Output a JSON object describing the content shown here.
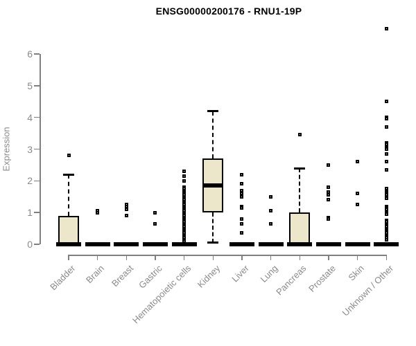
{
  "chart_data": {
    "type": "boxplot",
    "title": "ENSG00000200176 - RNU1-19P",
    "ylabel": "Expression",
    "xlabel": "",
    "ylim": [
      0,
      6
    ],
    "yticks": [
      0,
      1,
      2,
      3,
      4,
      5,
      6
    ],
    "grid": false,
    "legend": false,
    "colors": {
      "box_fill": "#ece7cb",
      "box_border": "#000000",
      "axis": "#7f7f7f",
      "tick_label": "#8a8a8a",
      "title": "#000000"
    },
    "categories": [
      "Bladder",
      "Brain",
      "Breast",
      "Gastric",
      "Hematopoietic cells",
      "Kidney",
      "Liver",
      "Lung",
      "Pancreas",
      "Prostate",
      "Skin",
      "Unknown / Other"
    ],
    "series": [
      {
        "label": "Bladder",
        "whisker_low": 0,
        "q1": 0,
        "median": 0,
        "q3": 0.9,
        "whisker_high": 2.2,
        "outliers": [
          2.8
        ]
      },
      {
        "label": "Brain",
        "whisker_low": 0,
        "q1": 0,
        "median": 0,
        "q3": 0,
        "whisker_high": 0,
        "outliers": [
          1.05,
          1.0
        ]
      },
      {
        "label": "Breast",
        "whisker_low": 0,
        "q1": 0,
        "median": 0,
        "q3": 0,
        "whisker_high": 0,
        "outliers": [
          1.25,
          1.2,
          1.1,
          0.9
        ]
      },
      {
        "label": "Gastric",
        "whisker_low": 0,
        "q1": 0,
        "median": 0,
        "q3": 0,
        "whisker_high": 0,
        "outliers": [
          1.0,
          0.65
        ]
      },
      {
        "label": "Hematopoietic cells",
        "whisker_low": 0,
        "q1": 0,
        "median": 0,
        "q3": 0,
        "whisker_high": 0,
        "outliers": [
          2.3,
          2.15,
          2.0,
          1.8,
          1.75,
          1.7,
          1.65,
          1.6,
          1.55,
          1.5,
          1.45,
          1.4,
          1.35,
          1.3,
          1.25,
          1.2,
          1.15,
          1.1,
          1.05,
          1.0,
          0.95,
          0.9,
          0.85,
          0.8,
          0.75,
          0.7,
          0.65,
          0.6,
          0.55,
          0.5,
          0.45,
          0.4,
          0.35,
          0.3,
          0.25,
          0.2,
          0.15,
          0.1
        ]
      },
      {
        "label": "Kidney",
        "whisker_low": 0.05,
        "q1": 1.0,
        "median": 1.85,
        "q3": 2.7,
        "whisker_high": 4.2,
        "outliers": []
      },
      {
        "label": "Liver",
        "whisker_low": 0,
        "q1": 0,
        "median": 0,
        "q3": 0,
        "whisker_high": 0,
        "outliers": [
          2.2,
          1.9,
          1.7,
          1.6,
          1.5,
          1.2,
          1.15,
          0.8,
          0.65,
          0.35
        ]
      },
      {
        "label": "Lung",
        "whisker_low": 0,
        "q1": 0,
        "median": 0,
        "q3": 0,
        "whisker_high": 0,
        "outliers": [
          1.5,
          1.05,
          0.65
        ]
      },
      {
        "label": "Pancreas",
        "whisker_low": 0,
        "q1": 0,
        "median": 0,
        "q3": 1.0,
        "whisker_high": 2.4,
        "outliers": [
          3.45
        ]
      },
      {
        "label": "Prostate",
        "whisker_low": 0,
        "q1": 0,
        "median": 0,
        "q3": 0,
        "whisker_high": 0,
        "outliers": [
          2.5,
          1.8,
          1.65,
          1.55,
          1.4,
          0.85,
          0.8
        ]
      },
      {
        "label": "Skin",
        "whisker_low": 0,
        "q1": 0,
        "median": 0,
        "q3": 0,
        "whisker_high": 0,
        "outliers": [
          2.6,
          1.6,
          1.25
        ]
      },
      {
        "label": "Unknown / Other",
        "whisker_low": 0,
        "q1": 0,
        "median": 0,
        "q3": 0,
        "whisker_high": 0,
        "outliers": [
          6.8,
          4.5,
          4.0,
          3.95,
          3.7,
          3.2,
          3.15,
          3.05,
          3.0,
          2.85,
          2.6,
          2.35,
          1.75,
          1.7,
          1.65,
          1.6,
          1.55,
          1.5,
          1.45,
          1.2,
          1.15,
          1.1,
          1.0,
          0.95,
          0.75,
          0.7,
          0.65,
          0.6,
          0.55,
          0.5,
          0.45,
          0.4,
          0.35,
          0.3,
          0.25,
          0.2,
          0.15
        ]
      }
    ]
  }
}
